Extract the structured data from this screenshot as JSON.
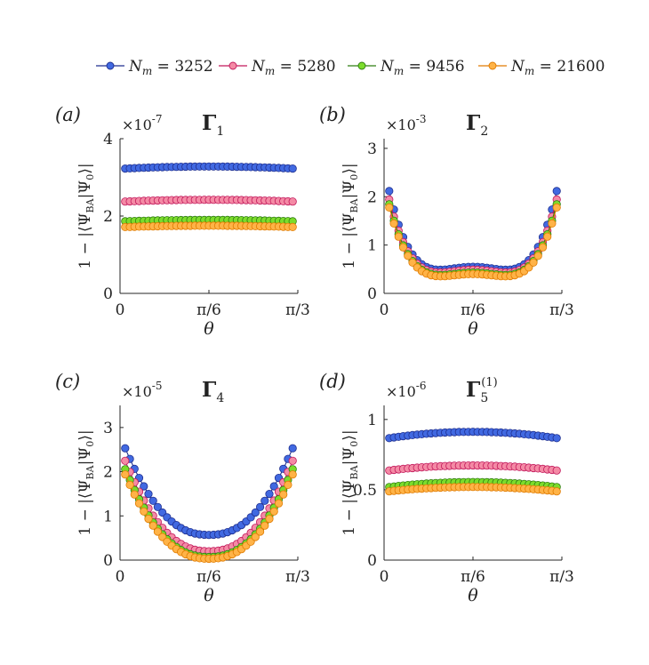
{
  "legend": {
    "entries": [
      {
        "sym": "N",
        "sub": "m",
        "value": "= 3252",
        "color": "#4169e1",
        "edge": "#1f2f8f"
      },
      {
        "sym": "N",
        "sub": "m",
        "value": "= 5280",
        "color": "#f48aa5",
        "edge": "#c2185b"
      },
      {
        "sym": "N",
        "sub": "m",
        "value": "= 9456",
        "color": "#7cdc2c",
        "edge": "#2e7d10"
      },
      {
        "sym": "N",
        "sub": "m",
        "value": "= 21600",
        "color": "#ffb347",
        "edge": "#e07b00"
      }
    ]
  },
  "chart_data": [
    {
      "type": "scatter",
      "panel_label": "(a)",
      "title": "Γ",
      "title_sub": "1",
      "title_sup": "",
      "exponent_label": "×10",
      "exponent_power": "-7",
      "ylabel": "1 − |⟨Ψ_BA|Ψ_0⟩|",
      "xlabel": "θ",
      "ylim": [
        0,
        4
      ],
      "yticks": [
        "0",
        "2",
        "4"
      ],
      "ytick_values": [
        0,
        2,
        4
      ],
      "xticks": [
        "0",
        "π/6",
        "π/3"
      ],
      "x_range_rad": [
        0.0305,
        1.0167
      ],
      "series": [
        {
          "name": "N_m = 3252",
          "shape": "flat",
          "a": 3.22,
          "b": 0.06
        },
        {
          "name": "N_m = 5280",
          "shape": "flat",
          "a": 2.37,
          "b": 0.05
        },
        {
          "name": "N_m = 9456",
          "shape": "flat",
          "a": 1.86,
          "b": 0.04
        },
        {
          "name": "N_m = 21600",
          "shape": "flat",
          "a": 1.71,
          "b": 0.04
        }
      ]
    },
    {
      "type": "scatter",
      "panel_label": "(b)",
      "title": "Γ",
      "title_sub": "2",
      "title_sup": "",
      "exponent_label": "×10",
      "exponent_power": "-3",
      "ylabel": "1 − |⟨Ψ_BA|Ψ_0⟩|",
      "xlabel": "θ",
      "ylim": [
        0,
        3.2
      ],
      "yticks": [
        "0",
        "1",
        "2",
        "3"
      ],
      "ytick_values": [
        0,
        1,
        2,
        3
      ],
      "xticks": [
        "0",
        "π/6",
        "π/3"
      ],
      "x_range_rad": [
        0.0305,
        1.0167
      ],
      "series": [
        {
          "name": "N_m = 3252",
          "shape": "poly",
          "a": 0.08,
          "b": 0.47,
          "c": 2.55
        },
        {
          "name": "N_m = 5280",
          "shape": "poly",
          "a": 0.05,
          "b": 0.44,
          "c": 2.37
        },
        {
          "name": "N_m = 9456",
          "shape": "poly",
          "a": 0.03,
          "b": 0.4,
          "c": 2.27
        },
        {
          "name": "N_m = 21600",
          "shape": "poly",
          "a": 0.02,
          "b": 0.38,
          "c": 2.2
        }
      ]
    },
    {
      "type": "scatter",
      "panel_label": "(c)",
      "title": "Γ",
      "title_sub": "4",
      "title_sup": "",
      "exponent_label": "×10",
      "exponent_power": "-5",
      "ylabel": "1 − |⟨Ψ_BA|Ψ_0⟩|",
      "xlabel": "θ",
      "ylim": [
        0,
        3.5
      ],
      "yticks": [
        "0",
        "1",
        "2",
        "3"
      ],
      "ytick_values": [
        0,
        1,
        2,
        3
      ],
      "xticks": [
        "0",
        "π/6",
        "π/3"
      ],
      "x_range_rad": [
        0.0305,
        1.0167
      ],
      "series": [
        {
          "name": "N_m = 3252",
          "shape": "bowl",
          "a": 0.57,
          "b": 2.82
        },
        {
          "name": "N_m = 5280",
          "shape": "bowl",
          "a": 0.2,
          "b": 2.55
        },
        {
          "name": "N_m = 9456",
          "shape": "bowl",
          "a": 0.07,
          "b": 2.35
        },
        {
          "name": "N_m = 21600",
          "shape": "bowl",
          "a": 0.03,
          "b": 2.22
        }
      ]
    },
    {
      "type": "scatter",
      "panel_label": "(d)",
      "title": "Γ",
      "title_sub": "5",
      "title_sup": "(1)",
      "exponent_label": "×10",
      "exponent_power": "-6",
      "ylabel": "1 − |⟨Ψ_BA|Ψ_0⟩|",
      "xlabel": "θ",
      "ylim": [
        0,
        1.1
      ],
      "yticks": [
        "0",
        "0.5",
        "1"
      ],
      "ytick_values": [
        0,
        0.5,
        1
      ],
      "xticks": [
        "0",
        "π/6",
        "π/3"
      ],
      "x_range_rad": [
        0.0305,
        1.0167
      ],
      "series": [
        {
          "name": "N_m = 3252",
          "shape": "flat",
          "a": 0.862,
          "b": 0.05
        },
        {
          "name": "N_m = 5280",
          "shape": "flat",
          "a": 0.633,
          "b": 0.04
        },
        {
          "name": "N_m = 9456",
          "shape": "flat",
          "a": 0.515,
          "b": 0.04
        },
        {
          "name": "N_m = 21600",
          "shape": "flat",
          "a": 0.485,
          "b": 0.035
        }
      ]
    }
  ]
}
